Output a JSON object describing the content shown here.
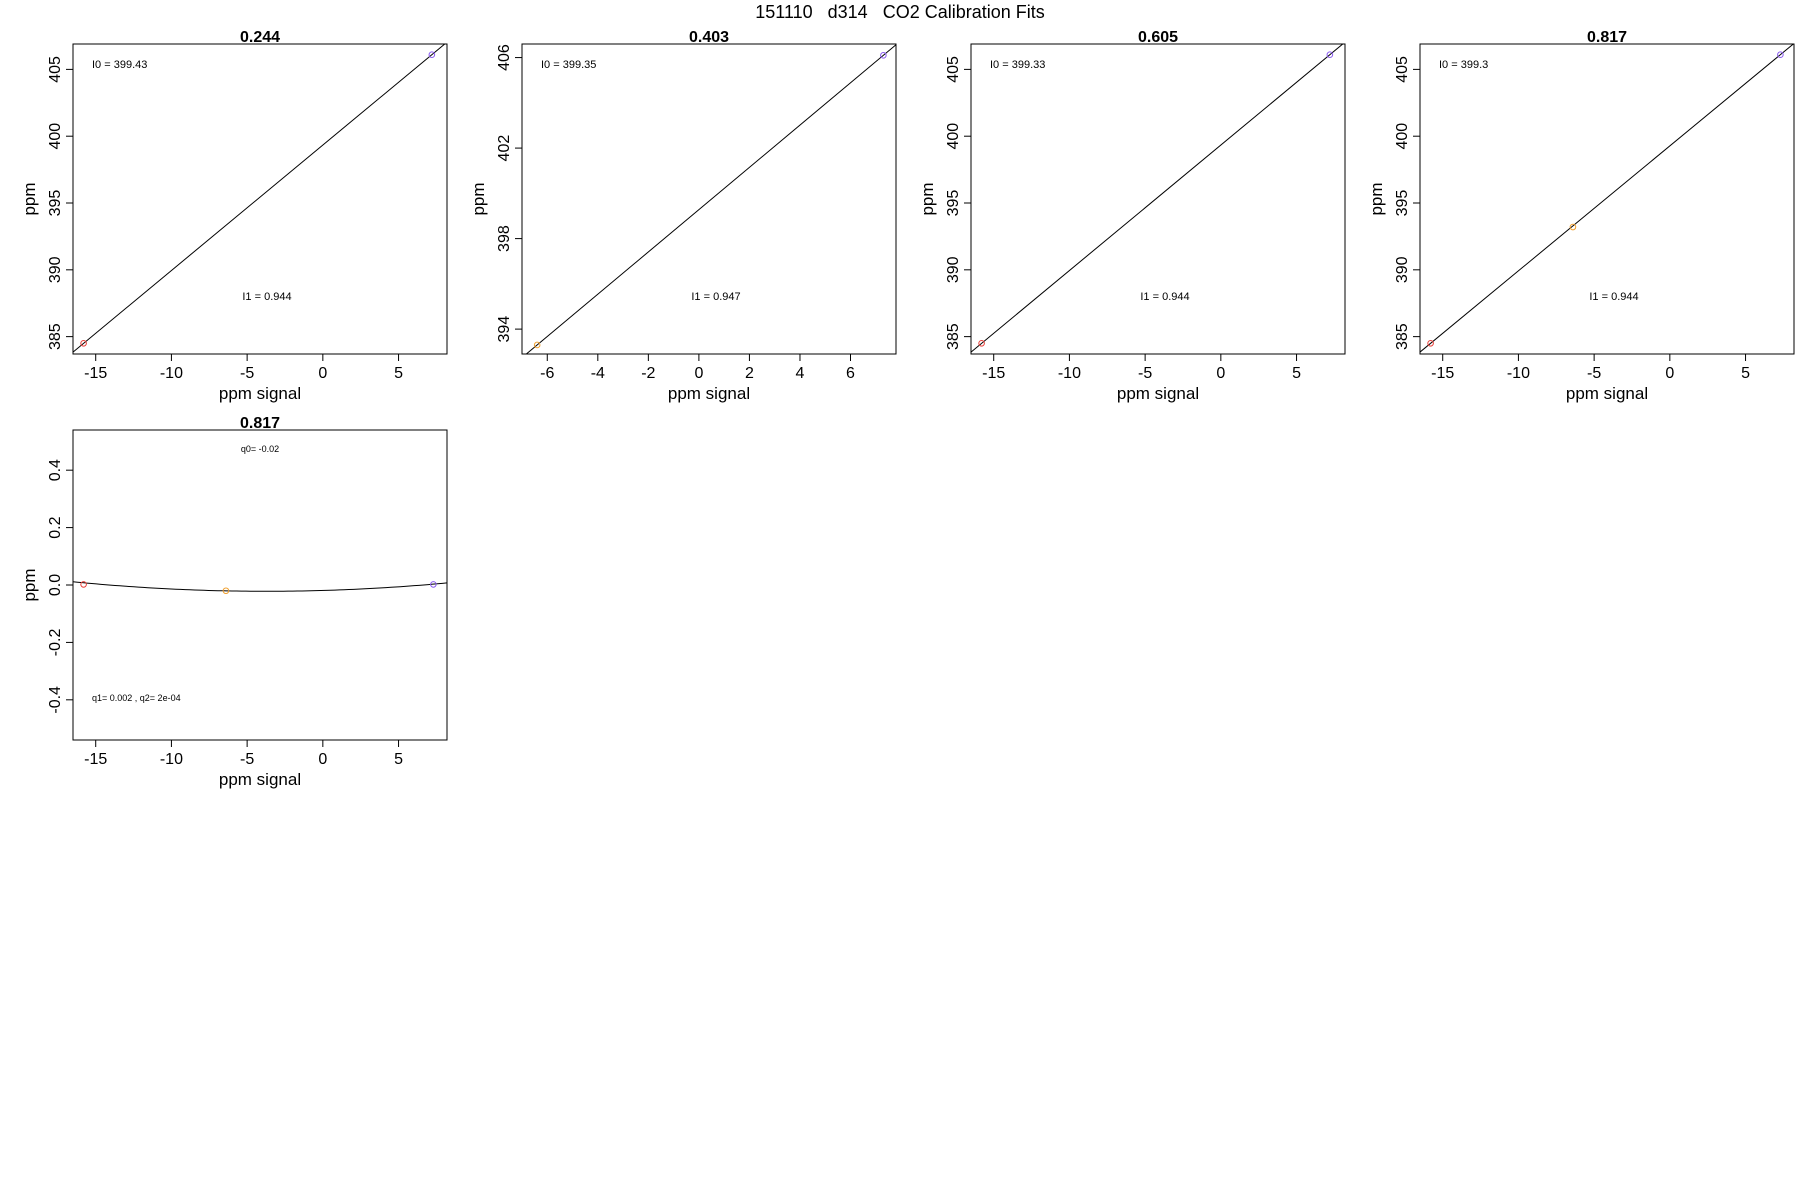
{
  "page": {
    "title": "151110   d314   CO2 Calibration Fits"
  },
  "colors": {
    "axis": "#000000",
    "fit_line": "#000000",
    "point_low": "#e8403a",
    "point_mid": "#f0a030",
    "point_high": "#8a5cf0"
  },
  "chart_data": [
    {
      "type": "scatter",
      "title": "0.244",
      "xlabel": "ppm signal",
      "ylabel": "ppm",
      "xlim": [
        -16.5,
        8.2
      ],
      "ylim": [
        383.7,
        406.9
      ],
      "xticks": [
        -15,
        -10,
        -5,
        0,
        5
      ],
      "yticks": [
        385,
        390,
        395,
        400,
        405
      ],
      "points": [
        {
          "x": -15.8,
          "y": 384.5,
          "color": "#e8403a"
        },
        {
          "x": 7.2,
          "y": 406.1,
          "color": "#8a5cf0"
        }
      ],
      "fit": {
        "kind": "linear",
        "i0": 399.43,
        "i1": 0.944
      },
      "annotations": [
        "I0 =  399.43",
        "I1 =  0.944"
      ]
    },
    {
      "type": "scatter",
      "title": "0.403",
      "xlabel": "ppm signal",
      "ylabel": "ppm",
      "xlim": [
        -7.0,
        7.8
      ],
      "ylim": [
        392.9,
        406.6
      ],
      "xticks": [
        -6,
        -4,
        -2,
        0,
        2,
        4,
        6
      ],
      "yticks": [
        394,
        398,
        402,
        406
      ],
      "points": [
        {
          "x": -6.4,
          "y": 393.3,
          "color": "#f0a030"
        },
        {
          "x": 7.3,
          "y": 406.1,
          "color": "#8a5cf0"
        }
      ],
      "fit": {
        "kind": "linear",
        "i0": 399.35,
        "i1": 0.947
      },
      "annotations": [
        "I0 =  399.35",
        "I1 =  0.947"
      ]
    },
    {
      "type": "scatter",
      "title": "0.605",
      "xlabel": "ppm signal",
      "ylabel": "ppm",
      "xlim": [
        -16.5,
        8.2
      ],
      "ylim": [
        383.7,
        406.9
      ],
      "xticks": [
        -15,
        -10,
        -5,
        0,
        5
      ],
      "yticks": [
        385,
        390,
        395,
        400,
        405
      ],
      "points": [
        {
          "x": -15.8,
          "y": 384.5,
          "color": "#e8403a"
        },
        {
          "x": 7.2,
          "y": 406.1,
          "color": "#8a5cf0"
        }
      ],
      "fit": {
        "kind": "linear",
        "i0": 399.33,
        "i1": 0.944
      },
      "annotations": [
        "I0 =  399.33",
        "I1 =  0.944"
      ]
    },
    {
      "type": "scatter",
      "title": "0.817",
      "xlabel": "ppm signal",
      "ylabel": "ppm",
      "xlim": [
        -16.5,
        8.2
      ],
      "ylim": [
        383.7,
        406.9
      ],
      "xticks": [
        -15,
        -10,
        -5,
        0,
        5
      ],
      "yticks": [
        385,
        390,
        395,
        400,
        405
      ],
      "points": [
        {
          "x": -15.8,
          "y": 384.5,
          "color": "#e8403a"
        },
        {
          "x": -6.4,
          "y": 393.2,
          "color": "#f0a030"
        },
        {
          "x": 7.3,
          "y": 406.1,
          "color": "#8a5cf0"
        }
      ],
      "fit": {
        "kind": "linear",
        "i0": 399.3,
        "i1": 0.944
      },
      "annotations": [
        "I0 =  399.3",
        "I1 =  0.944"
      ]
    },
    {
      "type": "scatter",
      "title": "0.817",
      "xlabel": "ppm signal",
      "ylabel": "ppm",
      "xlim": [
        -16.5,
        8.2
      ],
      "ylim": [
        -0.54,
        0.54
      ],
      "xticks": [
        -15,
        -10,
        -5,
        0,
        5
      ],
      "yticks": [
        -0.4,
        -0.2,
        0.0,
        0.2,
        0.4
      ],
      "points": [
        {
          "x": -15.8,
          "y": 0.002,
          "color": "#e8403a"
        },
        {
          "x": -6.4,
          "y": -0.02,
          "color": "#f0a030"
        },
        {
          "x": 7.3,
          "y": 0.002,
          "color": "#8a5cf0"
        }
      ],
      "fit": {
        "kind": "quadratic",
        "q0": -0.02,
        "q1": 0.002,
        "q2": 0.0002
      },
      "annotations": [
        "q0= -0.02",
        "q1= 0.002 , q2= 2e-04"
      ]
    }
  ]
}
